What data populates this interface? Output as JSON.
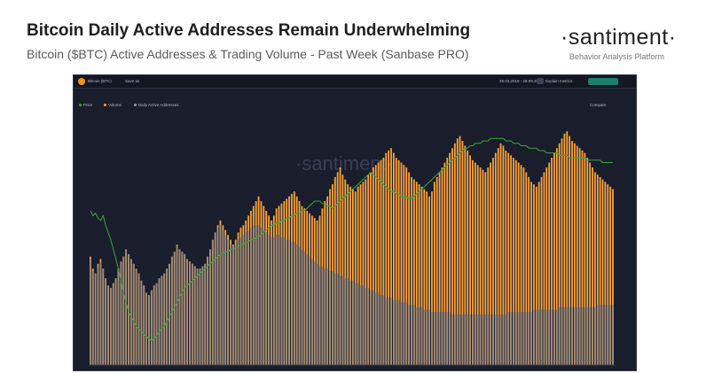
{
  "header": {
    "title": "Bitcoin Daily Active Addresses Remain Underwhelming",
    "subtitle": "Bitcoin ($BTC) Active Addresses & Trading Volume - Past Week (Sanbase PRO)",
    "brand": "·santiment·",
    "brand_tagline": "Behavior Analysis Platform"
  },
  "panel": {
    "asset": "Bitcoin (BTC)",
    "menu": "Save as",
    "date_range": "29.03.2019 - 28.09.2021",
    "explain": "Explain metrics",
    "signals": "Open Signals",
    "metrics": [
      "Price",
      "Volume",
      "Daily Active Addresses"
    ],
    "compare": "Compare",
    "watermark": "·santiment·"
  },
  "colors": {
    "background": "#1a1d2b",
    "volume": "#ffa53a",
    "active_addresses": "#8c8a8e",
    "price": "#3ba83b"
  },
  "chart_data": {
    "type": "bar",
    "title": "Bitcoin Daily Active Addresses Remain Underwhelming",
    "series": [
      {
        "name": "Volume",
        "kind": "bar",
        "values": [
          45,
          40,
          38,
          42,
          44,
          40,
          36,
          33,
          32,
          34,
          36,
          40,
          43,
          45,
          48,
          46,
          44,
          42,
          40,
          38,
          35,
          33,
          30,
          29,
          31,
          33,
          34,
          36,
          37,
          38,
          40,
          42,
          45,
          47,
          50,
          48,
          47,
          46,
          44,
          43,
          42,
          41,
          40,
          40,
          41,
          42,
          45,
          48,
          52,
          55,
          58,
          60,
          58,
          56,
          54,
          52,
          50,
          52,
          55,
          57,
          58,
          60,
          62,
          64,
          66,
          68,
          70,
          68,
          66,
          64,
          62,
          60,
          62,
          65,
          66,
          67,
          68,
          69,
          70,
          71,
          72,
          70,
          68,
          66,
          65,
          64,
          63,
          62,
          61,
          60,
          62,
          65,
          68,
          70,
          73,
          75,
          78,
          80,
          82,
          79,
          77,
          75,
          74,
          73,
          72,
          74,
          75,
          76,
          77,
          79,
          80,
          82,
          83,
          84,
          85,
          86,
          88,
          89,
          90,
          88,
          86,
          85,
          84,
          83,
          82,
          80,
          78,
          77,
          76,
          75,
          74,
          73,
          72,
          70,
          72,
          76,
          78,
          80,
          82,
          84,
          86,
          88,
          90,
          92,
          94,
          95,
          93,
          91,
          89,
          87,
          85,
          84,
          83,
          82,
          81,
          80,
          82,
          84,
          86,
          88,
          90,
          92,
          91,
          89,
          88,
          87,
          86,
          85,
          84,
          83,
          82,
          80,
          78,
          76,
          75,
          74,
          76,
          78,
          80,
          82,
          84,
          86,
          88,
          90,
          92,
          94,
          96,
          97,
          95,
          93,
          92,
          91,
          90,
          89,
          88,
          86,
          84,
          82,
          80,
          79,
          78,
          77,
          76,
          75,
          74,
          73
        ]
      },
      {
        "name": "Daily Active Addresses",
        "kind": "bar",
        "values": [
          44,
          39,
          38,
          41,
          43,
          40,
          36,
          33,
          32,
          34,
          36,
          40,
          43,
          45,
          48,
          46,
          44,
          42,
          40,
          38,
          35,
          33,
          30,
          29,
          31,
          33,
          34,
          36,
          37,
          38,
          40,
          42,
          45,
          47,
          50,
          48,
          47,
          46,
          44,
          43,
          42,
          41,
          40,
          40,
          41,
          42,
          45,
          48,
          52,
          55,
          57,
          58,
          56,
          54,
          52,
          50,
          49,
          50,
          52,
          53,
          54,
          55,
          56,
          57,
          58,
          58,
          58,
          57,
          56,
          55,
          54,
          53,
          53,
          54,
          54,
          53,
          53,
          52,
          52,
          51,
          51,
          50,
          49,
          48,
          47,
          46,
          45,
          44,
          43,
          42,
          41,
          41,
          40,
          40,
          39,
          39,
          38,
          38,
          37,
          37,
          36,
          36,
          35,
          35,
          34,
          34,
          33,
          33,
          32,
          32,
          31,
          31,
          30,
          30,
          29,
          29,
          28,
          28,
          28,
          27,
          27,
          27,
          26,
          26,
          26,
          25,
          25,
          25,
          24,
          24,
          24,
          23,
          23,
          23,
          22,
          22,
          22,
          22,
          22,
          22,
          22,
          22,
          21,
          21,
          21,
          21,
          21,
          21,
          21,
          21,
          21,
          21,
          21,
          21,
          21,
          21,
          21,
          21,
          21,
          21,
          21,
          21,
          21,
          21,
          22,
          22,
          22,
          22,
          22,
          22,
          22,
          22,
          22,
          22,
          23,
          23,
          23,
          23,
          23,
          23,
          23,
          23,
          23,
          23,
          24,
          24,
          24,
          24,
          24,
          24,
          24,
          24,
          24,
          24,
          24,
          24,
          24,
          24,
          24,
          25,
          25,
          25,
          25,
          25,
          25,
          25
        ]
      },
      {
        "name": "Price",
        "kind": "line",
        "values": [
          64,
          62,
          63,
          61,
          60,
          62,
          58,
          55,
          52,
          48,
          44,
          40,
          35,
          30,
          26,
          22,
          20,
          18,
          16,
          15,
          14,
          13,
          12,
          11,
          10,
          11,
          12,
          14,
          15,
          16,
          18,
          20,
          22,
          24,
          26,
          28,
          30,
          32,
          33,
          34,
          35,
          36,
          37,
          38,
          39,
          40,
          41,
          42,
          43,
          44,
          45,
          46,
          46,
          47,
          47,
          48,
          48,
          49,
          49,
          50,
          50,
          51,
          51,
          52,
          52,
          53,
          53,
          54,
          55,
          56,
          57,
          58,
          58,
          59,
          59,
          60,
          60,
          61,
          61,
          62,
          62,
          63,
          63,
          64,
          64,
          65,
          66,
          67,
          68,
          68,
          68,
          67,
          67,
          66,
          66,
          65,
          66,
          67,
          68,
          69,
          70,
          71,
          72,
          73,
          74,
          75,
          76,
          77,
          78,
          79,
          80,
          79,
          78,
          77,
          76,
          75,
          74,
          73,
          72,
          72,
          71,
          71,
          70,
          70,
          70,
          69,
          69,
          70,
          71,
          72,
          73,
          74,
          75,
          76,
          77,
          78,
          79,
          80,
          81,
          82,
          83,
          84,
          85,
          86,
          87,
          88,
          89,
          90,
          90,
          91,
          91,
          92,
          92,
          92,
          93,
          93,
          93,
          94,
          94,
          94,
          94,
          94,
          94,
          93,
          93,
          93,
          92,
          92,
          92,
          91,
          91,
          91,
          90,
          90,
          90,
          90,
          89,
          89,
          89,
          88,
          88,
          88,
          88,
          88,
          87,
          87,
          87,
          87,
          86,
          86,
          86,
          86,
          86,
          86,
          86,
          85,
          85,
          85,
          85,
          85,
          85,
          84,
          84,
          84,
          84,
          84
        ]
      }
    ],
    "ylim": [
      0,
      100
    ],
    "legend": "top-left",
    "grid": false
  }
}
